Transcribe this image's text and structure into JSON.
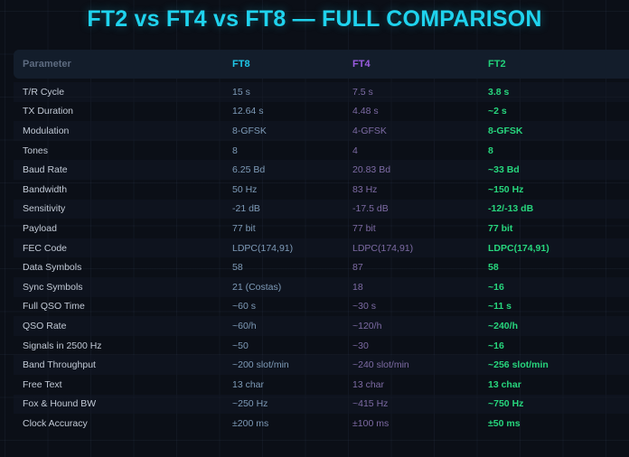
{
  "title": "FT2 vs FT4 vs FT8 — FULL COMPARISON",
  "colors": {
    "background": "#0b0f17",
    "title": "#1fd3ee",
    "ft8": "#1fc7e8",
    "ft4": "#9a5ce0",
    "ft2": "#22d07a"
  },
  "table": {
    "headers": [
      "Parameter",
      "FT8",
      "FT4",
      "FT2"
    ],
    "rows": [
      [
        "T/R Cycle",
        "15 s",
        "7.5 s",
        "3.8 s"
      ],
      [
        "TX Duration",
        "12.64 s",
        "4.48 s",
        "~2 s"
      ],
      [
        "Modulation",
        "8-GFSK",
        "4-GFSK",
        "8-GFSK"
      ],
      [
        "Tones",
        "8",
        "4",
        "8"
      ],
      [
        "Baud Rate",
        "6.25 Bd",
        "20.83 Bd",
        "~33 Bd"
      ],
      [
        "Bandwidth",
        "50 Hz",
        "83 Hz",
        "~150 Hz"
      ],
      [
        "Sensitivity",
        "-21 dB",
        "-17.5 dB",
        "-12/-13 dB"
      ],
      [
        "Payload",
        "77 bit",
        "77 bit",
        "77 bit"
      ],
      [
        "FEC Code",
        "LDPC(174,91)",
        "LDPC(174,91)",
        "LDPC(174,91)"
      ],
      [
        "Data Symbols",
        "58",
        "87",
        "58"
      ],
      [
        "Sync Symbols",
        "21 (Costas)",
        "18",
        "~16"
      ],
      [
        "Full QSO Time",
        "~60 s",
        "~30 s",
        "~11 s"
      ],
      [
        "QSO Rate",
        "~60/h",
        "~120/h",
        "~240/h"
      ],
      [
        "Signals in 2500 Hz",
        "~50",
        "~30",
        "~16"
      ],
      [
        "Band Throughput",
        "~200 slot/min",
        "~240 slot/min",
        "~256 slot/min"
      ],
      [
        "Free Text",
        "13 char",
        "13 char",
        "13 char"
      ],
      [
        "Fox & Hound BW",
        "~250 Hz",
        "~415 Hz",
        "~750 Hz"
      ],
      [
        "Clock Accuracy",
        "±200 ms",
        "±100 ms",
        "±50 ms"
      ]
    ]
  }
}
